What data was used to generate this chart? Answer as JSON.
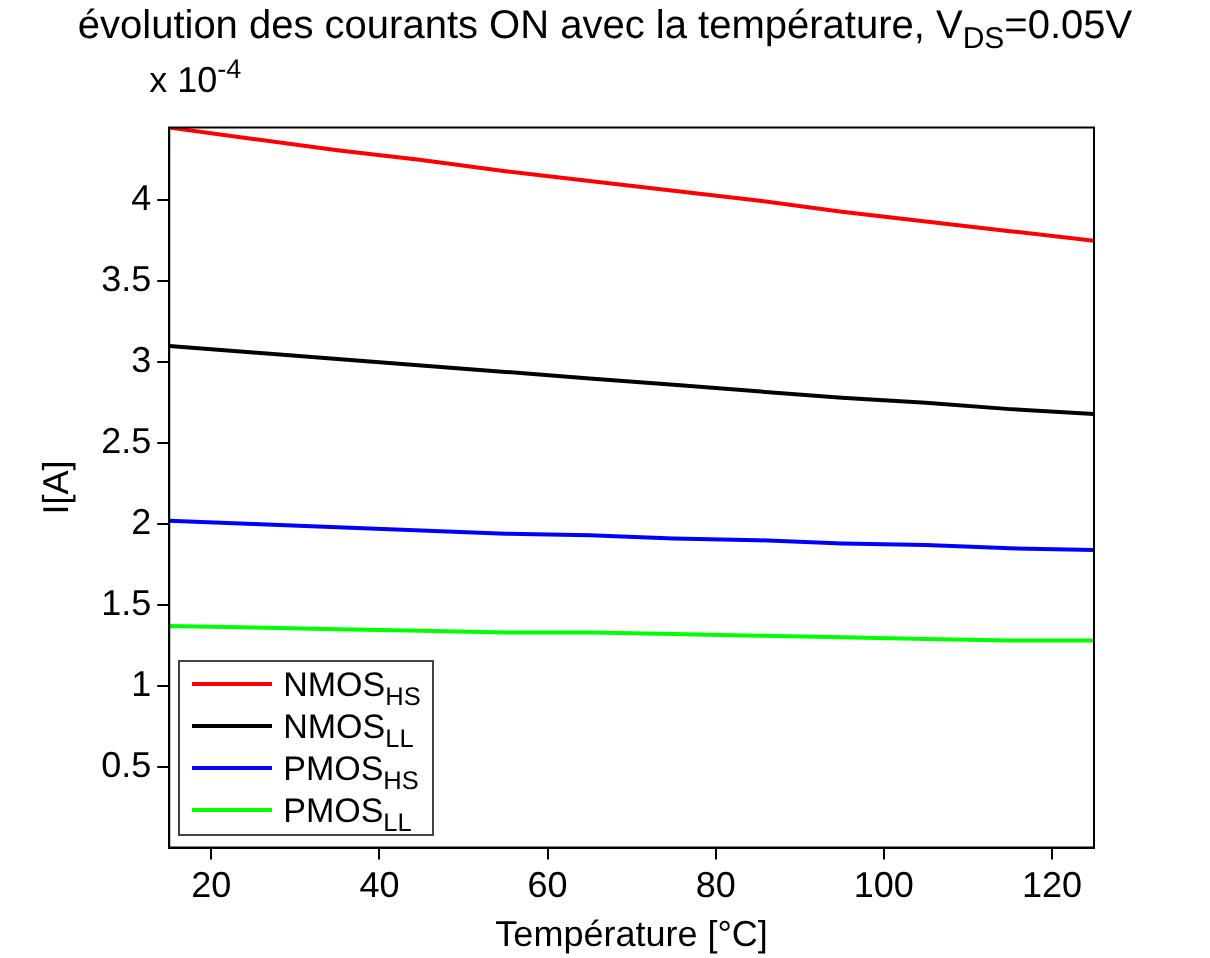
{
  "chart_data": {
    "type": "line",
    "title": "évolution des courants ON avec la température, V$_{DS}$=0.05V",
    "xlabel": "Température [°C]",
    "ylabel": "I[A]",
    "annotations": [
      "x 10$^{-4}$"
    ],
    "x": [
      15,
      25,
      35,
      45,
      55,
      65,
      75,
      85,
      95,
      105,
      115,
      125
    ],
    "series": [
      {
        "name": "NMOS$_{HS}$",
        "color": "#ff0000",
        "values": [
          4.45,
          4.38,
          4.31,
          4.25,
          4.18,
          4.12,
          4.06,
          4.0,
          3.93,
          3.87,
          3.81,
          3.75
        ]
      },
      {
        "name": "NMOS$_{LL}$",
        "color": "#000000",
        "values": [
          3.1,
          3.06,
          3.02,
          2.98,
          2.94,
          2.9,
          2.86,
          2.82,
          2.78,
          2.75,
          2.71,
          2.68
        ]
      },
      {
        "name": "PMOS$_{HS}$",
        "color": "#0000ff",
        "values": [
          2.02,
          2.0,
          1.98,
          1.96,
          1.94,
          1.93,
          1.91,
          1.9,
          1.88,
          1.87,
          1.85,
          1.84
        ]
      },
      {
        "name": "PMOS$_{LL}$",
        "color": "#00ff00",
        "values": [
          1.37,
          1.36,
          1.35,
          1.34,
          1.33,
          1.33,
          1.32,
          1.31,
          1.3,
          1.29,
          1.28,
          1.28
        ]
      }
    ],
    "xlim": [
      15,
      125
    ],
    "xticks": [
      20,
      40,
      60,
      80,
      100,
      120
    ],
    "ylim": [
      0,
      4.45
    ],
    "yticks": [
      0.5,
      1,
      1.5,
      2,
      2.5,
      3,
      3.5,
      4
    ],
    "grid": false,
    "legend": "bottom left",
    "marker": "none",
    "line_style": "solid"
  }
}
